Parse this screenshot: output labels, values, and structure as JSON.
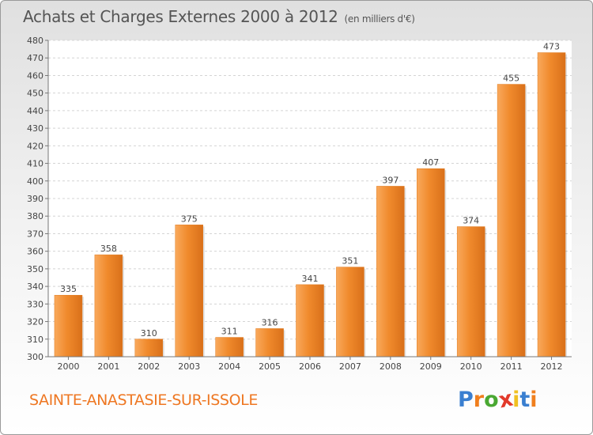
{
  "chart_data": {
    "type": "bar",
    "title": "Achats et Charges Externes 2000 à 2012",
    "subtitle": "(en milliers d'€)",
    "categories": [
      "2000",
      "2001",
      "2002",
      "2003",
      "2004",
      "2005",
      "2006",
      "2007",
      "2008",
      "2009",
      "2010",
      "2011",
      "2012"
    ],
    "values": [
      335,
      358,
      310,
      375,
      311,
      316,
      341,
      351,
      397,
      407,
      374,
      455,
      473
    ],
    "ylim": [
      300,
      480
    ],
    "ytick_step": 10,
    "grid": true,
    "legend": "none",
    "bar_color": "#f08a2c",
    "bar_color_light": "#f9a95c",
    "bar_color_dark": "#d9701a"
  },
  "footer": {
    "commune": "SAINTE-ANASTASIE-SUR-ISSOLE",
    "logo": "Proxiti",
    "logo_colors": [
      "#3a7fd0",
      "#f07f1e",
      "#4aa832",
      "#e23a2b",
      "#f0c020",
      "#3a7fd0",
      "#f07f1e"
    ]
  }
}
